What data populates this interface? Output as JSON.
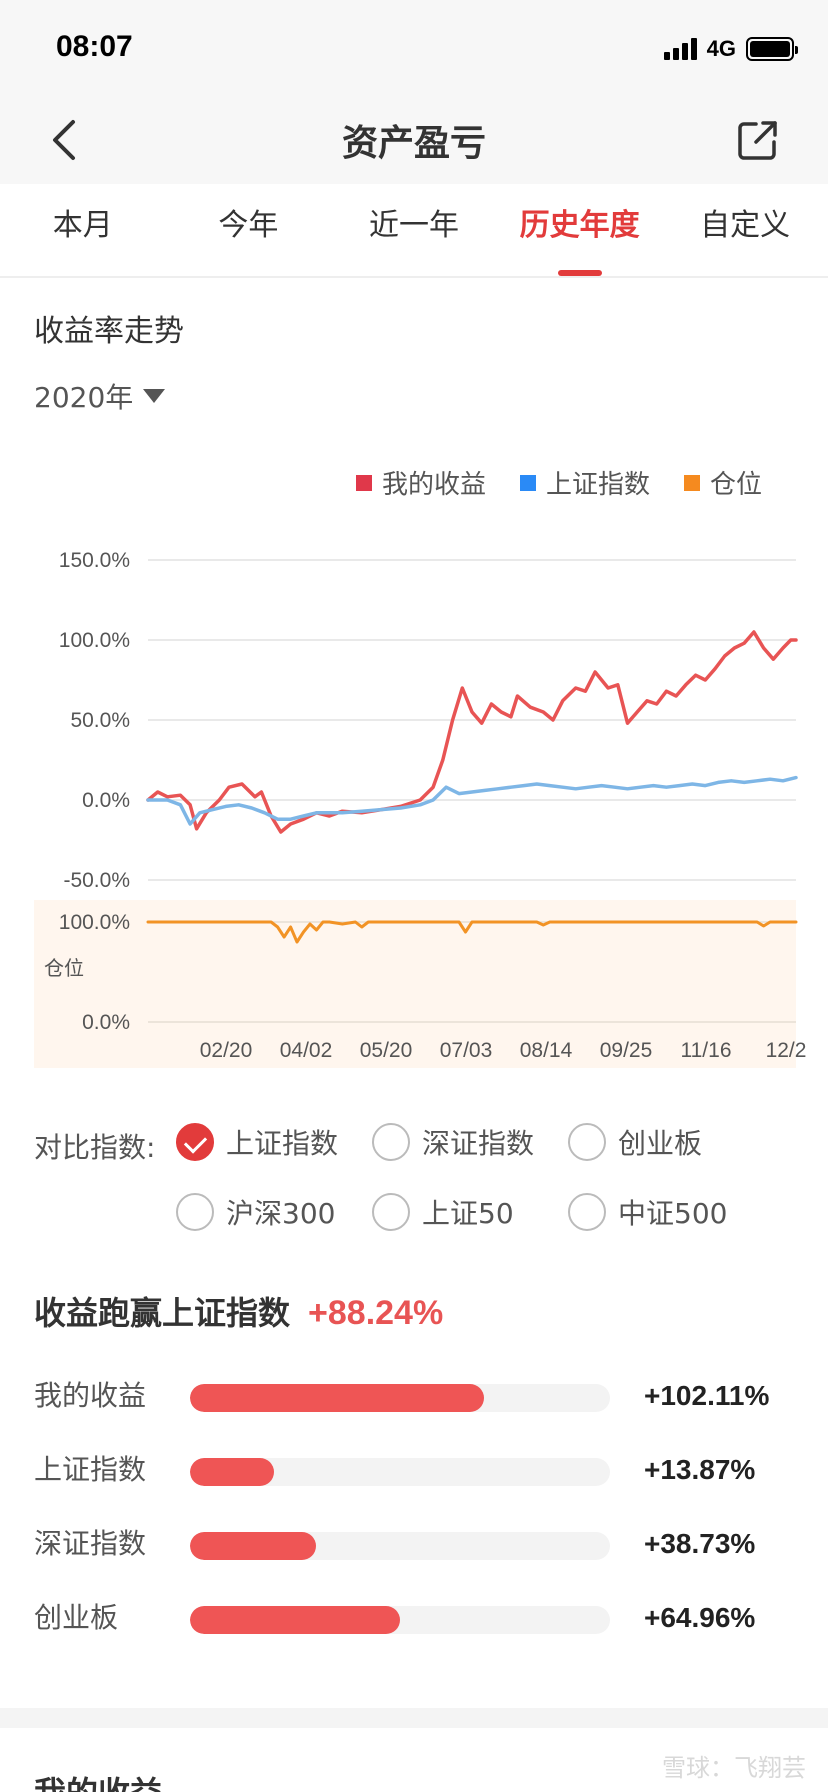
{
  "status": {
    "time": "08:07",
    "network": "4G"
  },
  "nav": {
    "title": "资产盈亏"
  },
  "tabs": [
    "本月",
    "今年",
    "近一年",
    "历史年度",
    "自定义"
  ],
  "active_tab": "历史年度",
  "section": {
    "title": "收益率走势",
    "year": "2020年"
  },
  "colors": {
    "my": "#e85454",
    "sh": "#7eb6e6",
    "pos": "#f29325",
    "accent": "#e23b3b"
  },
  "chart_data": {
    "type": "line",
    "legend": [
      "我的收益",
      "上证指数",
      "仓位"
    ],
    "x_ticks": [
      "02/20",
      "04/02",
      "05/20",
      "07/03",
      "08/14",
      "09/25",
      "11/16",
      "12/2"
    ],
    "y_ticks": [
      "150.0%",
      "100.0%",
      "50.0%",
      "0.0%",
      "-50.0%"
    ],
    "ylim": [
      -50,
      150
    ],
    "position_ticks": [
      "100.0%",
      "0.0%"
    ],
    "position_label": "仓位",
    "position_ylim": [
      0,
      100
    ],
    "series": [
      {
        "name": "我的收益",
        "x": [
          0,
          1.5,
          3,
          5,
          6.5,
          7.5,
          9,
          11,
          12.5,
          14.5,
          16.5,
          17.5,
          19,
          20.5,
          22,
          24,
          26,
          28,
          30,
          33,
          36,
          39,
          42,
          44,
          45.5,
          47,
          48.5,
          50,
          51.5,
          53,
          54.5,
          56,
          57,
          59,
          61,
          62.5,
          64,
          66,
          67.5,
          69,
          71,
          72.5,
          74,
          75.5,
          77,
          78.5,
          80,
          81.5,
          83,
          84.5,
          86,
          87.5,
          89,
          90.5,
          92,
          93.5,
          95,
          96.5,
          98,
          99.2,
          100
        ],
        "values": [
          0,
          5,
          2,
          3,
          -3,
          -18,
          -8,
          0,
          8,
          10,
          2,
          5,
          -10,
          -20,
          -15,
          -12,
          -8,
          -10,
          -7,
          -8,
          -6,
          -4,
          0,
          8,
          25,
          50,
          70,
          55,
          48,
          60,
          55,
          52,
          65,
          58,
          55,
          50,
          62,
          70,
          68,
          80,
          70,
          72,
          48,
          55,
          62,
          60,
          68,
          65,
          72,
          78,
          75,
          82,
          90,
          95,
          98,
          105,
          95,
          88,
          95,
          100,
          100
        ]
      },
      {
        "name": "上证指数",
        "x": [
          0,
          3,
          5,
          6.5,
          8,
          10,
          12,
          14,
          16,
          18,
          20,
          22,
          24,
          26,
          28,
          30,
          33,
          36,
          39,
          42,
          44,
          46,
          48,
          50,
          52,
          54,
          56,
          58,
          60,
          62,
          64,
          66,
          68,
          70,
          72,
          74,
          76,
          78,
          80,
          82,
          84,
          86,
          88,
          90,
          92,
          94,
          96,
          98,
          100
        ],
        "values": [
          0,
          0,
          -3,
          -15,
          -8,
          -6,
          -4,
          -3,
          -5,
          -8,
          -12,
          -12,
          -10,
          -8,
          -8,
          -8,
          -7,
          -6,
          -5,
          -3,
          0,
          8,
          4,
          5,
          6,
          7,
          8,
          9,
          10,
          9,
          8,
          7,
          8,
          9,
          8,
          7,
          8,
          9,
          8,
          9,
          10,
          9,
          11,
          12,
          11,
          12,
          13,
          12,
          14
        ]
      },
      {
        "name": "仓位",
        "x": [
          0,
          5,
          10,
          15,
          19,
          20,
          21,
          22,
          23,
          24,
          25,
          26,
          27,
          28,
          30,
          32,
          33,
          34,
          35,
          40,
          45,
          48,
          49,
          50,
          55,
          60,
          61,
          62,
          70,
          75,
          80,
          85,
          90,
          94,
          95,
          96,
          100
        ],
        "values": [
          100,
          100,
          100,
          100,
          100,
          95,
          85,
          95,
          80,
          90,
          98,
          92,
          100,
          100,
          98,
          100,
          95,
          100,
          100,
          100,
          100,
          100,
          90,
          100,
          100,
          100,
          97,
          100,
          100,
          100,
          100,
          100,
          100,
          100,
          96,
          100,
          100
        ]
      }
    ]
  },
  "compare": {
    "label": "对比指数:",
    "options": [
      "上证指数",
      "深证指数",
      "创业板",
      "沪深300",
      "上证50",
      "中证500"
    ],
    "checked": "上证指数"
  },
  "beat": {
    "title": "收益跑赢上证指数",
    "value": "+88.24%"
  },
  "bars": [
    {
      "label": "我的收益",
      "value": "+102.11%",
      "fraction": 0.7
    },
    {
      "label": "上证指数",
      "value": "+13.87%",
      "fraction": 0.2
    },
    {
      "label": "深证指数",
      "value": "+38.73%",
      "fraction": 0.3
    },
    {
      "label": "创业板",
      "value": "+64.96%",
      "fraction": 0.5
    }
  ],
  "next_section": {
    "title": "我的收益"
  },
  "watermark": "雪球：飞翔芸"
}
